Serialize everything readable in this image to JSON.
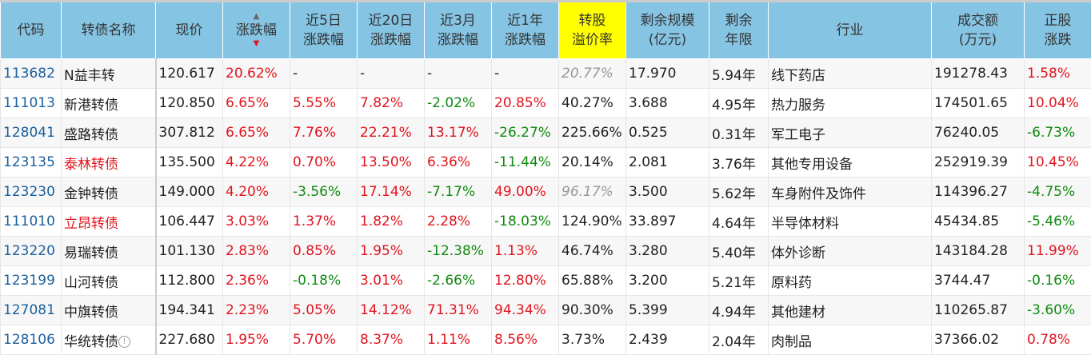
{
  "headers": [
    "代码",
    "转债名称",
    "现价",
    "涨跌幅",
    "近5日\n涨跌幅",
    "近20日\n涨跌幅",
    "近3月\n涨跌幅",
    "近1年\n涨跌幅",
    "转股\n溢价率",
    "剩余规模\n(亿元)",
    "剩余\n年限",
    "行业",
    "成交额\n(万元)",
    "正股\n涨跌"
  ],
  "sort": {
    "column": "涨跌幅",
    "direction": "desc"
  },
  "colors": {
    "header": "#86c4e4",
    "highlight": "#ffff00",
    "up": "#e0141e",
    "down": "#108a10"
  },
  "rows": [
    {
      "code": "113682",
      "name": "N益丰转",
      "name_red": false,
      "price": "120.617",
      "chg": "20.62%",
      "d5": "-",
      "d20": "-",
      "m3": "-",
      "y1": "-",
      "premium": "20.77%",
      "premium_gray": true,
      "size": "17.970",
      "years": "5.94年",
      "industry": "线下药店",
      "volume": "191278.43",
      "stock": "1.58%"
    },
    {
      "code": "111013",
      "name": "新港转债",
      "name_red": false,
      "price": "120.850",
      "chg": "6.65%",
      "d5": "5.55%",
      "d20": "7.82%",
      "m3": "-2.02%",
      "y1": "20.85%",
      "premium": "40.27%",
      "premium_gray": false,
      "size": "3.688",
      "years": "4.95年",
      "industry": "热力服务",
      "volume": "174501.65",
      "stock": "10.04%"
    },
    {
      "code": "128041",
      "name": "盛路转债",
      "name_red": false,
      "price": "307.812",
      "chg": "6.65%",
      "d5": "7.76%",
      "d20": "22.21%",
      "m3": "13.17%",
      "y1": "-26.27%",
      "premium": "225.66%",
      "premium_gray": false,
      "size": "0.525",
      "years": "0.31年",
      "industry": "军工电子",
      "volume": "76240.05",
      "stock": "-6.73%"
    },
    {
      "code": "123135",
      "name": "泰林转债",
      "name_red": true,
      "price": "135.500",
      "chg": "4.22%",
      "d5": "0.70%",
      "d20": "13.50%",
      "m3": "6.36%",
      "y1": "-11.44%",
      "premium": "20.14%",
      "premium_gray": false,
      "size": "2.081",
      "years": "3.76年",
      "industry": "其他专用设备",
      "volume": "252919.39",
      "stock": "10.45%"
    },
    {
      "code": "123230",
      "name": "金钟转债",
      "name_red": false,
      "price": "149.000",
      "chg": "4.20%",
      "d5": "-3.56%",
      "d20": "17.14%",
      "m3": "-7.17%",
      "y1": "49.00%",
      "premium": "96.17%",
      "premium_gray": true,
      "size": "3.500",
      "years": "5.62年",
      "industry": "车身附件及饰件",
      "volume": "114396.27",
      "stock": "-4.75%"
    },
    {
      "code": "111010",
      "name": "立昂转债",
      "name_red": true,
      "price": "106.447",
      "chg": "3.03%",
      "d5": "1.37%",
      "d20": "1.82%",
      "m3": "2.28%",
      "y1": "-18.03%",
      "premium": "124.90%",
      "premium_gray": false,
      "size": "33.897",
      "years": "4.64年",
      "industry": "半导体材料",
      "volume": "45434.85",
      "stock": "-5.46%"
    },
    {
      "code": "123220",
      "name": "易瑞转债",
      "name_red": false,
      "price": "101.130",
      "chg": "2.83%",
      "d5": "0.85%",
      "d20": "1.95%",
      "m3": "-12.38%",
      "y1": "1.13%",
      "premium": "46.74%",
      "premium_gray": false,
      "size": "3.280",
      "years": "5.40年",
      "industry": "体外诊断",
      "volume": "143184.28",
      "stock": "11.99%"
    },
    {
      "code": "123199",
      "name": "山河转债",
      "name_red": false,
      "price": "112.800",
      "chg": "2.36%",
      "d5": "-0.18%",
      "d20": "3.01%",
      "m3": "-2.66%",
      "y1": "12.80%",
      "premium": "65.88%",
      "premium_gray": false,
      "size": "3.200",
      "years": "5.21年",
      "industry": "原料药",
      "volume": "3744.47",
      "stock": "-0.16%"
    },
    {
      "code": "127081",
      "name": "中旗转债",
      "name_red": false,
      "price": "194.341",
      "chg": "2.23%",
      "d5": "5.05%",
      "d20": "14.12%",
      "m3": "71.31%",
      "y1": "94.34%",
      "premium": "90.30%",
      "premium_gray": false,
      "size": "5.399",
      "years": "4.94年",
      "industry": "其他建材",
      "volume": "110265.87",
      "stock": "-3.60%"
    },
    {
      "code": "128106",
      "name": "华统转债",
      "name_red": false,
      "info": "!",
      "price": "227.680",
      "chg": "1.95%",
      "d5": "5.70%",
      "d20": "8.37%",
      "m3": "1.11%",
      "y1": "8.56%",
      "premium": "3.73%",
      "premium_gray": false,
      "size": "2.439",
      "years": "2.04年",
      "industry": "肉制品",
      "volume": "37366.02",
      "stock": "0.78%"
    }
  ]
}
